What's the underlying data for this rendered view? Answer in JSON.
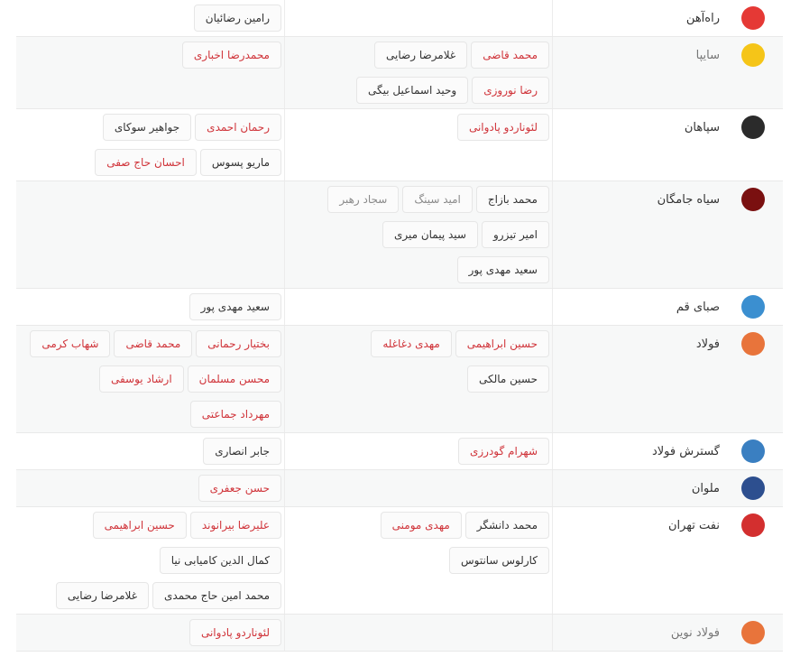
{
  "colors": {
    "red": "#d0343a",
    "dark": "#333333",
    "gray": "#8a8a8a"
  },
  "teams": [
    {
      "name": "راه‌آهن",
      "logo": "rahahan-logo",
      "logo_color": "#e53935",
      "muted": false,
      "mid": [],
      "left": [
        [
          {
            "n": "رامین رضائیان",
            "c": "dark"
          }
        ]
      ]
    },
    {
      "name": "سایپا",
      "logo": "saipa-logo",
      "logo_color": "#f5c518",
      "muted": true,
      "mid": [
        [
          {
            "n": "محمد قاضی",
            "c": "red"
          },
          {
            "n": "غلامرضا رضایی",
            "c": "dark"
          }
        ],
        [
          {
            "n": "رضا نوروزی",
            "c": "red"
          },
          {
            "n": "وحید اسماعیل بیگی",
            "c": "dark"
          }
        ]
      ],
      "left": [
        [
          {
            "n": "محمدرضا اخباری",
            "c": "red"
          }
        ]
      ]
    },
    {
      "name": "سپاهان",
      "logo": "sepahan-logo",
      "logo_color": "#2b2b2b",
      "muted": false,
      "mid": [
        [
          {
            "n": "لئوناردو پادوانی",
            "c": "red"
          }
        ]
      ],
      "left": [
        [
          {
            "n": "رحمان احمدی",
            "c": "red"
          },
          {
            "n": "جواهیر سوکای",
            "c": "dark"
          }
        ],
        [
          {
            "n": "ماریو پسوس",
            "c": "dark"
          },
          {
            "n": "احسان حاج صفی",
            "c": "red"
          }
        ]
      ]
    },
    {
      "name": "سیاه جامگان",
      "logo": "siahjamegan-logo",
      "logo_color": "#7a1010",
      "muted": false,
      "mid": [
        [
          {
            "n": "محمد بازاج",
            "c": "dark"
          },
          {
            "n": "امید سینگ",
            "c": "gray"
          },
          {
            "n": "سجاد رهبر",
            "c": "gray"
          }
        ],
        [
          {
            "n": "امیر تیزرو",
            "c": "dark"
          },
          {
            "n": "سید پیمان میری",
            "c": "dark"
          }
        ],
        [
          {
            "n": "سعید مهدی پور",
            "c": "dark"
          }
        ]
      ],
      "left": []
    },
    {
      "name": "صبای قم",
      "logo": "saba-logo",
      "logo_color": "#3b8fd0",
      "muted": false,
      "mid": [],
      "left": [
        [
          {
            "n": "سعید مهدی پور",
            "c": "dark"
          }
        ]
      ]
    },
    {
      "name": "فولاد",
      "logo": "foolad-logo",
      "logo_color": "#e8743b",
      "muted": false,
      "mid": [
        [
          {
            "n": "حسین ابراهیمی",
            "c": "red"
          },
          {
            "n": "مهدی دغاغله",
            "c": "red"
          }
        ],
        [
          {
            "n": "حسین مالکی",
            "c": "dark"
          }
        ]
      ],
      "left": [
        [
          {
            "n": "بختیار رحمانی",
            "c": "red"
          },
          {
            "n": "محمد قاضی",
            "c": "red"
          },
          {
            "n": "شهاب کرمی",
            "c": "red"
          }
        ],
        [
          {
            "n": "محسن مسلمان",
            "c": "red"
          },
          {
            "n": "ارشاد یوسفی",
            "c": "red"
          }
        ],
        [
          {
            "n": "مهرداد جماعتی",
            "c": "red"
          }
        ]
      ]
    },
    {
      "name": "گسترش فولاد",
      "logo": "gostaresh-logo",
      "logo_color": "#3a7fc1",
      "muted": false,
      "mid": [
        [
          {
            "n": "شهرام گودرزی",
            "c": "red"
          }
        ]
      ],
      "left": [
        [
          {
            "n": "جابر انصاری",
            "c": "dark"
          }
        ]
      ]
    },
    {
      "name": "ملوان",
      "logo": "malavan-logo",
      "logo_color": "#2d4f8f",
      "muted": false,
      "mid": [],
      "left": [
        [
          {
            "n": "حسن جعفری",
            "c": "red"
          }
        ]
      ]
    },
    {
      "name": "نفت تهران",
      "logo": "naft-logo",
      "logo_color": "#d32f2f",
      "muted": false,
      "mid": [
        [
          {
            "n": "محمد دانشگر",
            "c": "dark"
          },
          {
            "n": "مهدی مومنی",
            "c": "red"
          }
        ],
        [
          {
            "n": "کارلوس سانتوس",
            "c": "dark"
          }
        ]
      ],
      "left": [
        [
          {
            "n": "علیرضا بیرانوند",
            "c": "red"
          },
          {
            "n": "حسین ابراهیمی",
            "c": "red"
          }
        ],
        [
          {
            "n": "کمال الدین کامیابی نیا",
            "c": "dark"
          }
        ],
        [
          {
            "n": "محمد امین حاج محمدی",
            "c": "dark"
          },
          {
            "n": "غلامرضا رضایی",
            "c": "dark"
          }
        ]
      ]
    },
    {
      "name": "فولاد نوین",
      "logo": "fooladnovin-logo",
      "logo_color": "#e8743b",
      "muted": true,
      "mid": [],
      "left": [
        [
          {
            "n": "لئوناردو پادوانی",
            "c": "red"
          }
        ]
      ]
    }
  ]
}
